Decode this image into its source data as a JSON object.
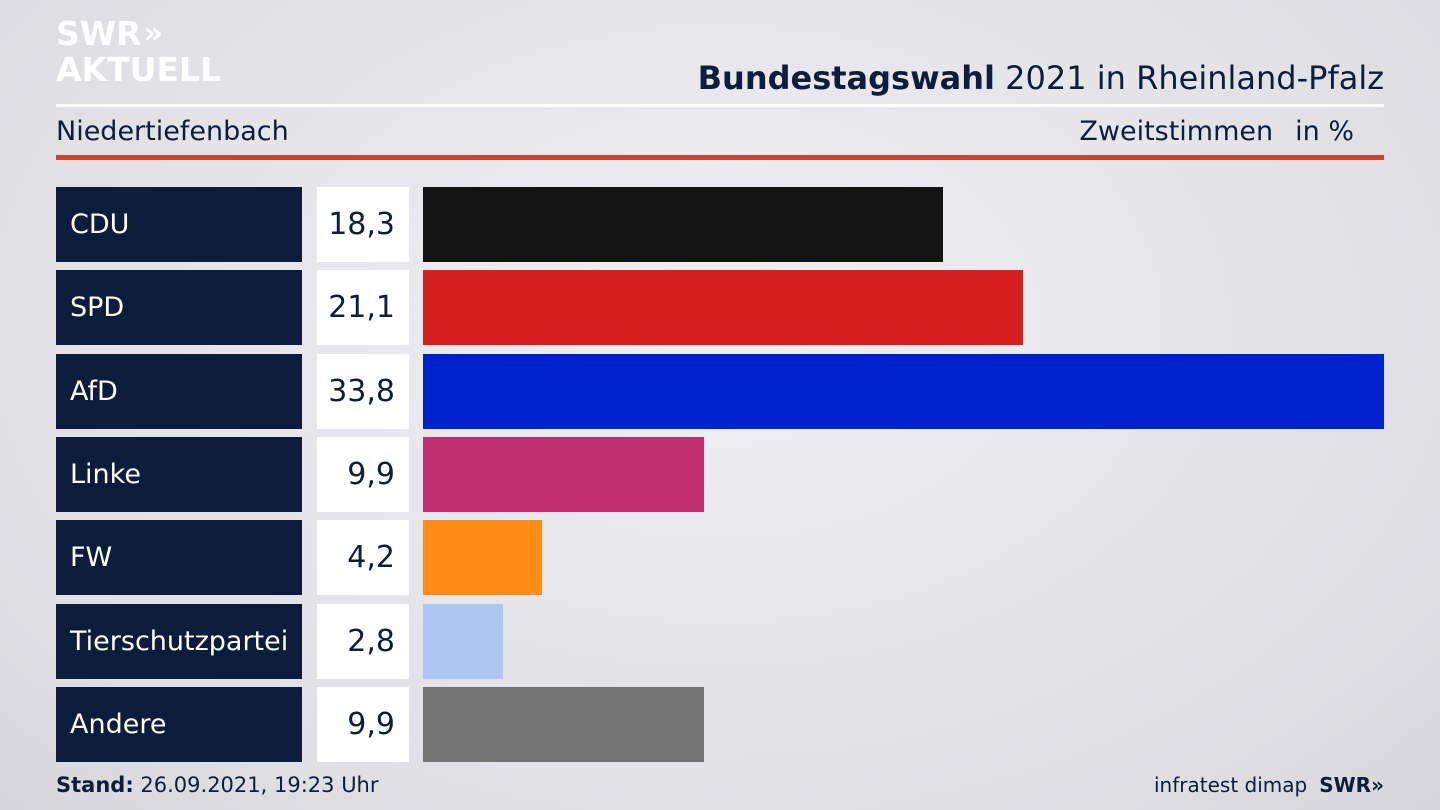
{
  "brand": {
    "logo_line1": "SWR",
    "logo_chevrons": "»",
    "logo_line2": "AKTUELL",
    "footer_logo": "SWR»"
  },
  "header": {
    "title_bold": "Bundestagswahl",
    "title_rest": "2021 in Rheinland-Pfalz",
    "location": "Niedertiefenbach",
    "measure": "Zweitstimmen",
    "unit": "in %"
  },
  "footer": {
    "stand_label": "Stand:",
    "stand_value": "26.09.2021, 19:23 Uhr",
    "source": "infratest dimap"
  },
  "colors": {
    "accent_red": "#cc4233",
    "label_bg": "#0c1d3b"
  },
  "chart_data": {
    "type": "bar",
    "orientation": "horizontal",
    "categories": [
      "CDU",
      "SPD",
      "AfD",
      "Linke",
      "FW",
      "Tierschutzpartei",
      "Andere"
    ],
    "values": [
      18.3,
      21.1,
      33.8,
      9.9,
      4.2,
      2.8,
      9.9
    ],
    "value_labels": [
      "18,3",
      "21,1",
      "33,8",
      "9,9",
      "4,2",
      "2,8",
      "9,9"
    ],
    "colors": [
      "#141414",
      "#d81f1f",
      "#0022cc",
      "#c03070",
      "#ff8c17",
      "#adc8f0",
      "#737373"
    ],
    "xlim": [
      0,
      33.8
    ],
    "grid": false,
    "legend": "none"
  }
}
